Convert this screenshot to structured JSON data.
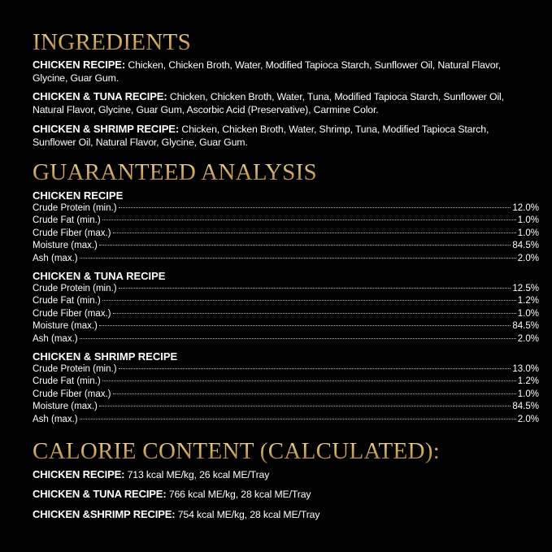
{
  "ingredients": {
    "title": "INGREDIENTS",
    "items": [
      {
        "label": "CHICKEN RECIPE:",
        "text": " Chicken, Chicken Broth, Water, Modified Tapioca Starch, Sunflower Oil, Natural Flavor, Glycine, Guar Gum."
      },
      {
        "label": "CHICKEN & TUNA RECIPE:",
        "text": " Chicken, Chicken Broth, Water, Tuna, Modified Tapioca Starch, Sunflower Oil, Natural Flavor, Glycine, Guar Gum, Ascorbic Acid (Preservative), Carmine Color."
      },
      {
        "label": "CHICKEN & SHRIMP RECIPE:",
        "text": " Chicken, Chicken Broth, Water, Shrimp, Tuna, Modified Tapioca Starch, Sunflower Oil, Natural Flavor, Glycine, Guar Gum."
      }
    ]
  },
  "analysis": {
    "title": "GUARANTEED ANALYSIS",
    "recipes": [
      {
        "name": "CHICKEN RECIPE",
        "rows": [
          {
            "label": "Crude Protein (min.)",
            "value": "12.0%"
          },
          {
            "label": "Crude Fat (min.)",
            "value": "1.0%"
          },
          {
            "label": "Crude Fiber (max.)",
            "value": "1.0%"
          },
          {
            "label": "Moisture (max.)",
            "value": "84.5%"
          },
          {
            "label": "Ash (max.)",
            "value": "2.0%"
          }
        ]
      },
      {
        "name": "CHICKEN & TUNA RECIPE",
        "rows": [
          {
            "label": "Crude Protein (min.)",
            "value": "12.5%"
          },
          {
            "label": "Crude Fat (min.)",
            "value": "1.2%"
          },
          {
            "label": "Crude Fiber (max.)",
            "value": "1.0%"
          },
          {
            "label": "Moisture (max.)",
            "value": "84.5%"
          },
          {
            "label": "Ash (max.)",
            "value": "2.0%"
          }
        ]
      },
      {
        "name": "CHICKEN & SHRIMP RECIPE",
        "rows": [
          {
            "label": "Crude Protein (min.)",
            "value": "13.0%"
          },
          {
            "label": "Crude Fat (min.)",
            "value": "1.2%"
          },
          {
            "label": "Crude Fiber (max.)",
            "value": "1.0%"
          },
          {
            "label": "Moisture (max.)",
            "value": "84.5%"
          },
          {
            "label": "Ash (max.)",
            "value": "2.0%"
          }
        ]
      }
    ]
  },
  "calories": {
    "title": "CALORIE CONTENT (CALCULATED):",
    "items": [
      {
        "label": "CHICKEN RECIPE:",
        "text": " 713 kcal ME/kg, 26 kcal ME/Tray"
      },
      {
        "label": "CHICKEN & TUNA RECIPE:",
        "text": " 766 kcal ME/kg, 28 kcal ME/Tray"
      },
      {
        "label": "CHICKEN &SHRIMP RECIPE:",
        "text": " 754 kcal ME/kg, 28 kcal ME/Tray"
      }
    ]
  },
  "colors": {
    "background": "#000000",
    "heading_gold": "#d4ac5a",
    "text": "#ffffff"
  }
}
